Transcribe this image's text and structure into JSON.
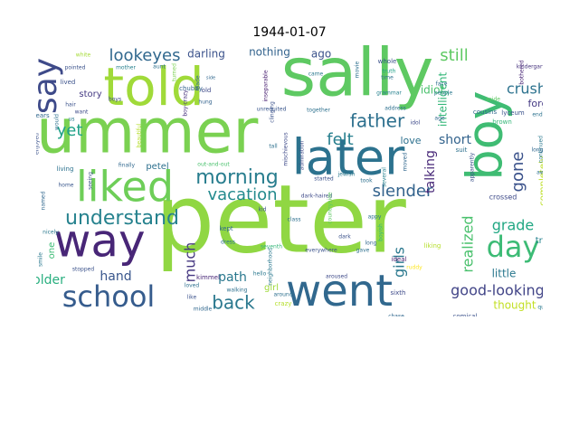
{
  "title": "1944-01-07",
  "words": [
    {
      "text": "peter",
      "color": "#90d743"
    },
    {
      "text": "sally",
      "color": "#5ec962"
    },
    {
      "text": "summer",
      "color": "#7ad151"
    },
    {
      "text": "told",
      "color": "#a0da39"
    },
    {
      "text": "boy",
      "color": "#3fbc73"
    },
    {
      "text": "later",
      "color": "#2c728e"
    },
    {
      "text": "liked",
      "color": "#6ece58"
    },
    {
      "text": "way",
      "color": "#482677"
    },
    {
      "text": "went",
      "color": "#31688e"
    },
    {
      "text": "school",
      "color": "#365c8d"
    },
    {
      "text": "say",
      "color": "#3e4a89"
    },
    {
      "text": "day",
      "color": "#3cbb75"
    },
    {
      "text": "understand",
      "color": "#26828e"
    },
    {
      "text": "morning",
      "color": "#287d8e"
    },
    {
      "text": "father",
      "color": "#2d708e"
    },
    {
      "text": "lookeyes",
      "color": "#31688e"
    },
    {
      "text": "felt",
      "color": "#277f8e"
    },
    {
      "text": "back",
      "color": "#2a788e"
    },
    {
      "text": "vacation",
      "color": "#238a8d"
    },
    {
      "text": "slender",
      "color": "#33638d"
    },
    {
      "text": "good-looking",
      "color": "#414487"
    },
    {
      "text": "gone",
      "color": "#3b528b"
    },
    {
      "text": "crush",
      "color": "#2c728e"
    },
    {
      "text": "still",
      "color": "#5ec962"
    },
    {
      "text": "short",
      "color": "#33638d"
    },
    {
      "text": "grade",
      "color": "#22a884"
    },
    {
      "text": "yet",
      "color": "#1fa187"
    },
    {
      "text": "much",
      "color": "#453781"
    },
    {
      "text": "hand",
      "color": "#39568c"
    },
    {
      "text": "path",
      "color": "#2a788e"
    },
    {
      "text": "older",
      "color": "#29af7f"
    },
    {
      "text": "realized",
      "color": "#4ac16d"
    },
    {
      "text": "girls",
      "color": "#2a788e"
    },
    {
      "text": "talking",
      "color": "#482878"
    },
    {
      "text": "thought",
      "color": "#c2df23"
    },
    {
      "text": "darling",
      "color": "#3b528b"
    },
    {
      "text": "nothing",
      "color": "#33638d"
    },
    {
      "text": "ago",
      "color": "#3b528b"
    },
    {
      "text": "intelligent",
      "color": "#35b779"
    },
    {
      "text": "idiot",
      "color": "#4ac16d"
    },
    {
      "text": "forgot",
      "color": "#443983"
    },
    {
      "text": "love",
      "color": "#2d708e"
    },
    {
      "text": "little",
      "color": "#2a788e"
    },
    {
      "text": "story",
      "color": "#443983"
    },
    {
      "text": "true",
      "color": "#26828e"
    },
    {
      "text": "petel",
      "color": "#2d708e"
    },
    {
      "text": "completely",
      "color": "#bddf26"
    },
    {
      "text": "one",
      "color": "#3cbb75"
    },
    {
      "text": "girl",
      "color": "#9fda3a"
    },
    {
      "text": "crossed",
      "color": "#3e4a89"
    },
    {
      "text": "serious",
      "color": "#440154"
    },
    {
      "text": "ideal",
      "color": "#481a6c"
    },
    {
      "text": "sixth",
      "color": "#3e4a89"
    },
    {
      "text": "suit",
      "color": "#2d708e"
    },
    {
      "text": "cousins",
      "color": "#31688e"
    },
    {
      "text": "lyceum",
      "color": "#3b528b"
    },
    {
      "text": "kindergarten",
      "color": "#46337e"
    },
    {
      "text": "bothered",
      "color": "#482475"
    },
    {
      "text": "white",
      "color": "#a5db36"
    },
    {
      "text": "pointed",
      "color": "#3b528b"
    },
    {
      "text": "mother",
      "color": "#27808e"
    },
    {
      "text": "aunt",
      "color": "#2d708e"
    },
    {
      "text": "chubby",
      "color": "#33638d"
    },
    {
      "text": "turned",
      "color": "#7ad151"
    },
    {
      "text": "side",
      "color": "#31688e"
    },
    {
      "text": "old",
      "color": "#3e4a89"
    },
    {
      "text": "inseparable",
      "color": "#481f70"
    },
    {
      "text": "clinging",
      "color": "#3b528b"
    },
    {
      "text": "unrequited",
      "color": "#39568c"
    },
    {
      "text": "mischievous",
      "color": "#3e4a89"
    },
    {
      "text": "together",
      "color": "#2d708e"
    },
    {
      "text": "address",
      "color": "#2d708e"
    },
    {
      "text": "came",
      "color": "#2a788e"
    },
    {
      "text": "whole",
      "color": "#3b528b"
    },
    {
      "text": "truth",
      "color": "#1fa187"
    },
    {
      "text": "time",
      "color": "#2c728e"
    },
    {
      "text": "grammar",
      "color": "#26828e"
    },
    {
      "text": "face",
      "color": "#2d708e"
    },
    {
      "text": "people",
      "color": "#2a788e"
    },
    {
      "text": "aside",
      "color": "#5ec962"
    },
    {
      "text": "end",
      "color": "#2c728e"
    },
    {
      "text": "brown",
      "color": "#35b779"
    },
    {
      "text": "age",
      "color": "#31688e"
    },
    {
      "text": "pick",
      "color": "#2d708e"
    },
    {
      "text": "lived",
      "color": "#3b528b"
    },
    {
      "text": "want",
      "color": "#3e4a89"
    },
    {
      "text": "years",
      "color": "#31688e"
    },
    {
      "text": "hung",
      "color": "#33638d"
    },
    {
      "text": "boy-crazy",
      "color": "#46327e"
    },
    {
      "text": "made",
      "color": "#31688e"
    },
    {
      "text": "beautiful",
      "color": "#b5de2b"
    },
    {
      "text": "enjoyed",
      "color": "#3b528b"
    },
    {
      "text": "finally",
      "color": "#31688e"
    },
    {
      "text": "living",
      "color": "#2c728e"
    },
    {
      "text": "home",
      "color": "#39568c"
    },
    {
      "text": "seeing",
      "color": "#3b528b"
    },
    {
      "text": "us",
      "color": "#2a788e"
    },
    {
      "text": "tall",
      "color": "#2d708e"
    },
    {
      "text": "admiration",
      "color": "#3e4a89"
    },
    {
      "text": "started",
      "color": "#3b528b"
    },
    {
      "text": "jewish",
      "color": "#2a788e"
    },
    {
      "text": "took",
      "color": "#2d708e"
    },
    {
      "text": "several",
      "color": "#26828e"
    },
    {
      "text": "moved",
      "color": "#31688e"
    },
    {
      "text": "apparently",
      "color": "#3b528b"
    },
    {
      "text": "continued",
      "color": "#2a788e"
    },
    {
      "text": "longer",
      "color": "#31688e"
    },
    {
      "text": "away",
      "color": "#2d708e"
    },
    {
      "text": "honored",
      "color": "#3e4a89"
    },
    {
      "text": "out-and-out",
      "color": "#4ac16d"
    },
    {
      "text": "dark-haired",
      "color": "#3e4a89"
    },
    {
      "text": "kid",
      "color": "#3b528b"
    },
    {
      "text": "kept",
      "color": "#31688e"
    },
    {
      "text": "class",
      "color": "#2d708e"
    },
    {
      "text": "neighborhood",
      "color": "#2a788e"
    },
    {
      "text": "everywhere",
      "color": "#3b528b"
    },
    {
      "text": "dress",
      "color": "#2d708e"
    },
    {
      "text": "dark",
      "color": "#3b528b"
    },
    {
      "text": "appy",
      "color": "#2c728e"
    },
    {
      "text": "boyish",
      "color": "#35b779"
    },
    {
      "text": "countryside",
      "color": "#5ec962"
    },
    {
      "text": "gave",
      "color": "#2d708e"
    },
    {
      "text": "nicely",
      "color": "#2a788e"
    },
    {
      "text": "named",
      "color": "#31688e"
    },
    {
      "text": "smile",
      "color": "#2a788e"
    },
    {
      "text": "stopped",
      "color": "#3b528b"
    },
    {
      "text": "kimmel",
      "color": "#482677"
    },
    {
      "text": "loved",
      "color": "#2d708e"
    },
    {
      "text": "like",
      "color": "#3b528b"
    },
    {
      "text": "middle",
      "color": "#31688e"
    },
    {
      "text": "walking",
      "color": "#2d708e"
    },
    {
      "text": "seventh",
      "color": "#35b779"
    },
    {
      "text": "hello",
      "color": "#2a788e"
    },
    {
      "text": "crazy",
      "color": "#b5de2b"
    },
    {
      "text": "around",
      "color": "#2d708e"
    },
    {
      "text": "aroused",
      "color": "#3e4a89"
    },
    {
      "text": "liking",
      "color": "#b5de2b"
    },
    {
      "text": "ruddy",
      "color": "#fde725"
    },
    {
      "text": "chase",
      "color": "#31688e"
    },
    {
      "text": "comical",
      "color": "#3b528b"
    },
    {
      "text": "quiet",
      "color": "#2a788e"
    },
    {
      "text": "idol",
      "color": "#3e4a89"
    },
    {
      "text": "movie",
      "color": "#2d708e"
    },
    {
      "text": "boys",
      "color": "#3e4a89"
    },
    {
      "text": "hair",
      "color": "#3b528b"
    },
    {
      "text": "would",
      "color": "#2d708e"
    },
    {
      "text": "long",
      "color": "#31688e"
    }
  ]
}
